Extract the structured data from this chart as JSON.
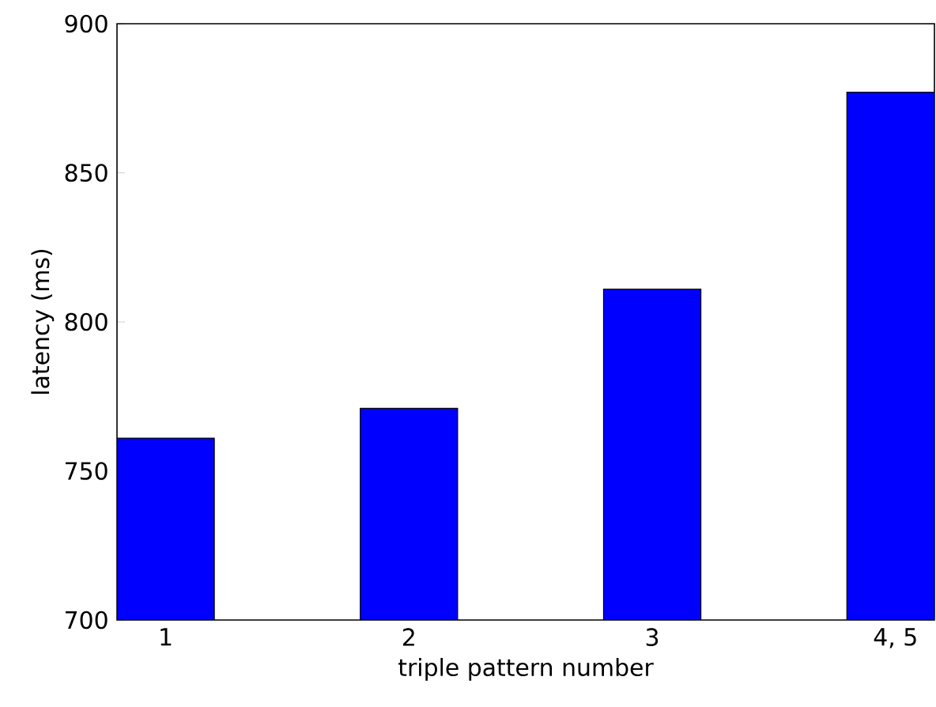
{
  "chart_data": {
    "type": "bar",
    "xlabel": "triple pattern number",
    "ylabel": "latency (ms)",
    "categories": [
      "1",
      "2",
      "3",
      "4, 5"
    ],
    "values": [
      761,
      771,
      811,
      877
    ],
    "color": "#0000ff",
    "ylim": [
      700,
      900
    ],
    "yticks": [
      700,
      750,
      800,
      850,
      900
    ]
  }
}
